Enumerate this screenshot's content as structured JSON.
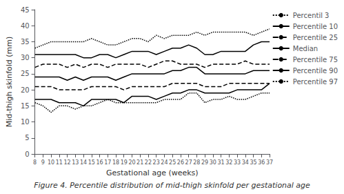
{
  "chart_data": {
    "type": "line",
    "title": "Figure 4. Percentile distribution of mid-thigh skinfold per gestational age",
    "x_label": "Gestational age (weeks)",
    "y_label": "Mid-thigh skinfold (mm)",
    "x": [
      8,
      9,
      10,
      11,
      12,
      13,
      14,
      15,
      16,
      17,
      18,
      19,
      20,
      21,
      22,
      23,
      24,
      25,
      26,
      27,
      28,
      29,
      30,
      31,
      32,
      33,
      34,
      35,
      36,
      37
    ],
    "xlim": [
      8,
      37
    ],
    "xticks": [
      8,
      9,
      10,
      11,
      12,
      13,
      14,
      15,
      16,
      17,
      18,
      19,
      20,
      21,
      22,
      23,
      24,
      25,
      26,
      27,
      28,
      29,
      30,
      31,
      32,
      33,
      34,
      35,
      36,
      37
    ],
    "ylim": [
      0,
      45
    ],
    "yticks": [
      0,
      5,
      10,
      15,
      20,
      25,
      30,
      35,
      40,
      45
    ],
    "grid": false,
    "legend": "upper right",
    "series": [
      {
        "name": "Percentil 3",
        "color": "#000000",
        "line_style": "dotted",
        "values": [
          16,
          15,
          13,
          15,
          15,
          14,
          15,
          15,
          16,
          17,
          16,
          16,
          16,
          16,
          16,
          16,
          17,
          17,
          17,
          19,
          19,
          16,
          17,
          17,
          18,
          17,
          17,
          18,
          19,
          19
        ]
      },
      {
        "name": "Percentile 10",
        "color": "#000000",
        "line_style": "solid",
        "values": [
          17,
          17,
          17,
          16,
          16,
          16,
          15,
          17,
          17,
          17,
          17,
          16,
          18,
          18,
          18,
          17,
          18,
          19,
          19,
          20,
          20,
          19,
          19,
          19,
          19,
          20,
          20,
          20,
          20,
          22
        ]
      },
      {
        "name": "Percentile 25",
        "color": "#000000",
        "line_style": "dashed",
        "values": [
          21,
          21,
          21,
          20,
          20,
          20,
          20,
          21,
          21,
          21,
          21,
          20,
          21,
          21,
          21,
          21,
          21,
          22,
          22,
          22,
          22,
          21,
          21,
          21,
          22,
          22,
          22,
          22,
          22,
          22
        ]
      },
      {
        "name": "Median",
        "color": "#000000",
        "line_style": "solid",
        "values": [
          24,
          24,
          24,
          24,
          23,
          24,
          23,
          24,
          24,
          24,
          23,
          24,
          25,
          25,
          25,
          25,
          25,
          26,
          26,
          27,
          27,
          25,
          25,
          25,
          25,
          25,
          25,
          26,
          26,
          26
        ]
      },
      {
        "name": "Percentile 75",
        "color": "#000000",
        "line_style": "dashed",
        "values": [
          27,
          28,
          28,
          28,
          27,
          28,
          27,
          28,
          28,
          27,
          28,
          28,
          28,
          28,
          27,
          28,
          29,
          29,
          28,
          28,
          28,
          27,
          28,
          28,
          28,
          28,
          29,
          28,
          28,
          28
        ]
      },
      {
        "name": "Percentile 90",
        "color": "#000000",
        "line_style": "solid",
        "values": [
          31,
          31,
          31,
          31,
          31,
          31,
          30,
          30,
          31,
          31,
          30,
          31,
          32,
          32,
          32,
          31,
          32,
          33,
          33,
          34,
          33,
          31,
          31,
          32,
          32,
          32,
          32,
          34,
          35,
          35
        ]
      },
      {
        "name": "Percentile 97",
        "color": "#000000",
        "line_style": "dotted",
        "values": [
          33,
          34,
          35,
          35,
          35,
          35,
          35,
          36,
          35,
          34,
          34,
          35,
          36,
          36,
          35,
          37,
          36,
          37,
          37,
          37,
          38,
          37,
          38,
          38,
          38,
          38,
          38,
          37,
          38,
          39
        ]
      }
    ]
  }
}
